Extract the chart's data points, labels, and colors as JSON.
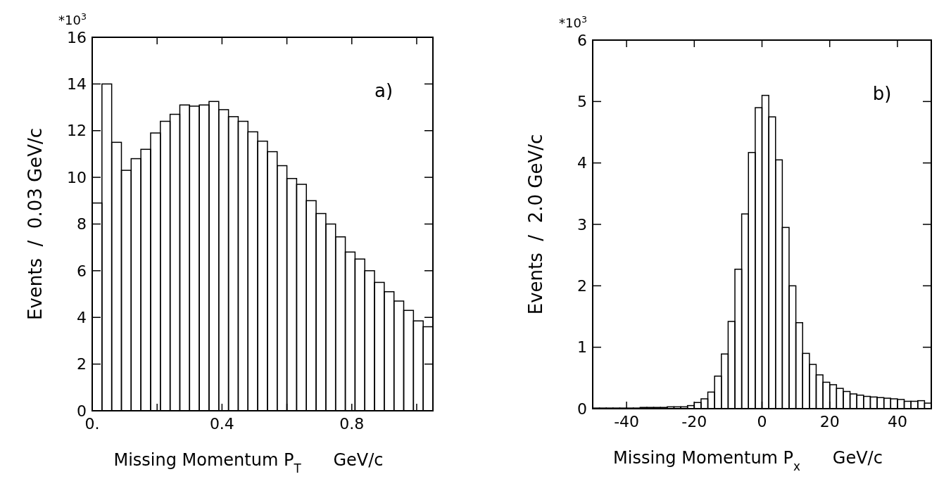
{
  "chart_data": [
    {
      "type": "histogram",
      "xlabel": "Missing Momentum P$_{T}$      GeV/c",
      "ylabel": "Events  /  0.03 GeV/c",
      "annotations": [
        "a)",
        "*10$^{3}$"
      ],
      "color": "#000000",
      "bins": [
        0,
        0.03,
        0.06,
        0.09,
        0.12,
        0.15,
        0.18,
        0.21,
        0.24,
        0.27,
        0.3,
        0.33,
        0.36,
        0.39,
        0.42,
        0.45,
        0.48,
        0.51,
        0.54,
        0.57,
        0.6,
        0.63,
        0.66,
        0.69,
        0.72,
        0.75,
        0.78,
        0.81,
        0.84,
        0.87,
        0.9,
        0.93,
        0.96,
        0.99,
        1.02,
        1.05
      ],
      "values": [
        8.9,
        14.0,
        11.5,
        10.3,
        10.8,
        11.2,
        11.9,
        12.4,
        12.7,
        13.1,
        13.05,
        13.1,
        13.25,
        12.9,
        12.6,
        12.4,
        11.95,
        11.55,
        11.1,
        10.5,
        9.95,
        9.7,
        9.0,
        8.45,
        8.0,
        7.45,
        6.8,
        6.5,
        6.0,
        5.5,
        5.1,
        4.7,
        4.3,
        3.85,
        3.6
      ],
      "xlim": [
        0,
        1.05
      ],
      "xticks": [
        {
          "value": 0,
          "label": "0."
        },
        {
          "value": 0.2,
          "label": null
        },
        {
          "value": 0.4,
          "label": "0.4"
        },
        {
          "value": 0.6,
          "label": null
        },
        {
          "value": 0.8,
          "label": "0.8"
        },
        {
          "value": 1.0,
          "label": null
        }
      ],
      "ylim": [
        0,
        16
      ],
      "yticks": [
        0,
        2,
        4,
        6,
        8,
        10,
        12,
        14,
        16
      ]
    },
    {
      "type": "histogram",
      "xlabel": "Missing Momentum P$_{x}$      GeV/c",
      "ylabel": "Events  /  2.0 GeV/c",
      "annotations": [
        "b)",
        "*10$^{3}$"
      ],
      "color": "#000000",
      "bins": [
        -50,
        -48,
        -46,
        -44,
        -42,
        -40,
        -38,
        -36,
        -34,
        -32,
        -30,
        -28,
        -26,
        -24,
        -22,
        -20,
        -18,
        -16,
        -14,
        -12,
        -10,
        -8,
        -6,
        -4,
        -2,
        0,
        2,
        4,
        6,
        8,
        10,
        12,
        14,
        16,
        18,
        20,
        22,
        24,
        26,
        28,
        30,
        32,
        34,
        36,
        38,
        40,
        42,
        44,
        46,
        48,
        50
      ],
      "values": [
        0.01,
        0.01,
        0.01,
        0.01,
        0.01,
        0.01,
        0.01,
        0.02,
        0.02,
        0.02,
        0.02,
        0.03,
        0.03,
        0.03,
        0.05,
        0.1,
        0.16,
        0.27,
        0.53,
        0.89,
        1.42,
        2.27,
        3.17,
        4.17,
        4.9,
        5.1,
        4.75,
        4.05,
        2.95,
        2.0,
        1.4,
        0.9,
        0.72,
        0.55,
        0.43,
        0.39,
        0.33,
        0.28,
        0.24,
        0.22,
        0.2,
        0.19,
        0.18,
        0.17,
        0.16,
        0.15,
        0.12,
        0.12,
        0.13,
        0.09
      ],
      "xlim": [
        -50,
        50
      ],
      "xticks": [
        -40,
        -20,
        0,
        20,
        40
      ],
      "ylim": [
        0,
        6
      ],
      "yticks": [
        0,
        1,
        2,
        3,
        4,
        5,
        6
      ]
    }
  ]
}
